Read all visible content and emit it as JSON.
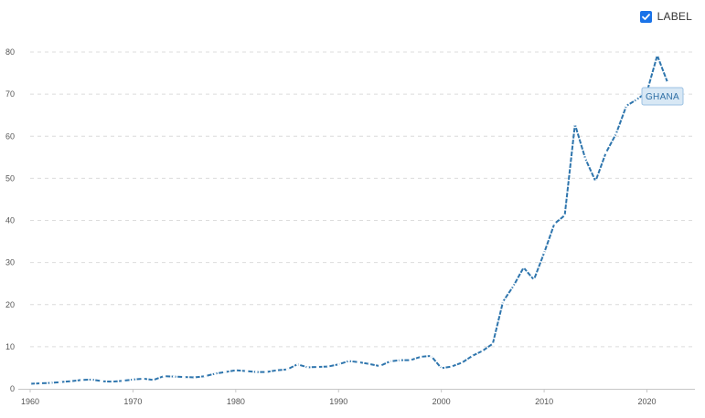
{
  "controls": {
    "label_toggle": {
      "label": "LABEL",
      "checked": true,
      "accent_color": "#1a73e8"
    }
  },
  "chart_data": {
    "type": "line",
    "title": "",
    "xlabel": "",
    "ylabel": "",
    "xlim": [
      1960,
      2022
    ],
    "ylim": [
      0,
      80
    ],
    "x_ticks": [
      1960,
      1970,
      1980,
      1990,
      2000,
      2010,
      2020
    ],
    "y_ticks": [
      0,
      10,
      20,
      30,
      40,
      50,
      60,
      70,
      80
    ],
    "grid": "horizontal-dashed",
    "line_style": "dotted",
    "series": [
      {
        "name": "GHANA",
        "color": "#2e75ad",
        "x": [
          1960,
          1961,
          1962,
          1963,
          1964,
          1965,
          1966,
          1967,
          1968,
          1969,
          1970,
          1971,
          1972,
          1973,
          1974,
          1975,
          1976,
          1977,
          1978,
          1979,
          1980,
          1981,
          1982,
          1983,
          1984,
          1985,
          1986,
          1987,
          1988,
          1989,
          1990,
          1991,
          1992,
          1993,
          1994,
          1995,
          1996,
          1997,
          1998,
          1999,
          2000,
          2001,
          2002,
          2003,
          2004,
          2005,
          2006,
          2007,
          2008,
          2009,
          2010,
          2011,
          2012,
          2013,
          2014,
          2015,
          2016,
          2017,
          2018,
          2019,
          2020,
          2021,
          2022
        ],
        "y": [
          1.2,
          1.3,
          1.4,
          1.6,
          1.8,
          2.1,
          2.2,
          1.8,
          1.7,
          1.9,
          2.2,
          2.4,
          2.1,
          3.0,
          2.9,
          2.8,
          2.7,
          3.0,
          3.6,
          4.0,
          4.4,
          4.2,
          4.0,
          4.0,
          4.4,
          4.6,
          5.8,
          5.1,
          5.2,
          5.3,
          5.8,
          6.6,
          6.3,
          5.9,
          5.4,
          6.5,
          6.8,
          6.8,
          7.6,
          7.8,
          4.9,
          5.3,
          6.2,
          7.8,
          9.0,
          10.7,
          20.7,
          24.4,
          28.8,
          25.9,
          32.3,
          39.2,
          41.2,
          62.8,
          54.7,
          49.3,
          56.0,
          60.6,
          67.2,
          68.7,
          70.5,
          79.2,
          72.8
        ]
      }
    ]
  }
}
